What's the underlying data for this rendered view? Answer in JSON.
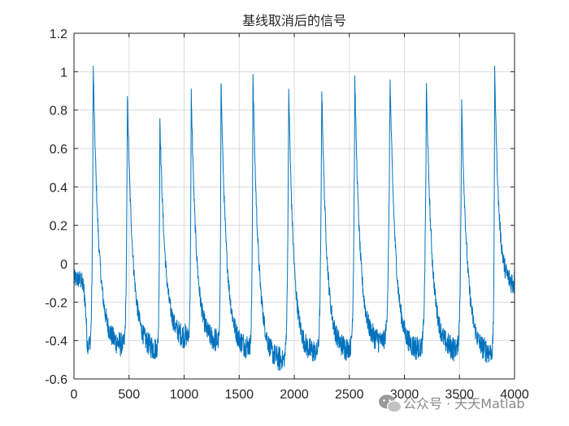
{
  "chart_data": {
    "type": "line",
    "title": "基线取消后的信号",
    "xlabel": "",
    "ylabel": "",
    "xlim": [
      0,
      4000
    ],
    "ylim": [
      -0.6,
      1.2
    ],
    "grid": true,
    "x_ticks": [
      0,
      500,
      1000,
      1500,
      2000,
      2500,
      3000,
      3500,
      4000
    ],
    "x_tick_labels": [
      "0",
      "500",
      "1000",
      "1500",
      "2000",
      "2500",
      "3000",
      "3500",
      "4000"
    ],
    "y_ticks": [
      -0.6,
      -0.4,
      -0.2,
      0,
      0.2,
      0.4,
      0.6,
      0.8,
      1,
      1.2
    ],
    "y_tick_labels": [
      "-0.6",
      "-0.4",
      "-0.2",
      "0",
      "0.2",
      "0.4",
      "0.6",
      "0.8",
      "1",
      "1.2"
    ],
    "series": [
      {
        "color": "#0072BD",
        "start": {
          "x": 0,
          "y": -0.08
        },
        "pre_dip": {
          "x": 120,
          "y": -0.42
        },
        "peaks": [
          {
            "x": 175,
            "y": 1.02
          },
          {
            "x": 485,
            "y": 0.87
          },
          {
            "x": 780,
            "y": 0.76
          },
          {
            "x": 1065,
            "y": 0.89
          },
          {
            "x": 1335,
            "y": 0.96
          },
          {
            "x": 1625,
            "y": 0.99
          },
          {
            "x": 1950,
            "y": 0.91
          },
          {
            "x": 2250,
            "y": 0.92
          },
          {
            "x": 2550,
            "y": 0.97
          },
          {
            "x": 2870,
            "y": 0.96
          },
          {
            "x": 3200,
            "y": 0.93
          },
          {
            "x": 3520,
            "y": 0.84
          },
          {
            "x": 3820,
            "y": 1.02
          }
        ],
        "troughs": [
          {
            "x": 430,
            "y": -0.42
          },
          {
            "x": 740,
            "y": -0.44
          },
          {
            "x": 1020,
            "y": -0.38
          },
          {
            "x": 1300,
            "y": -0.4
          },
          {
            "x": 1580,
            "y": -0.43
          },
          {
            "x": 1880,
            "y": -0.5
          },
          {
            "x": 2180,
            "y": -0.46
          },
          {
            "x": 2480,
            "y": -0.44
          },
          {
            "x": 2780,
            "y": -0.4
          },
          {
            "x": 3120,
            "y": -0.44
          },
          {
            "x": 3450,
            "y": -0.44
          },
          {
            "x": 3780,
            "y": -0.46
          }
        ],
        "end": {
          "x": 4000,
          "y": -0.1
        },
        "noise_amplitude": 0.05
      }
    ]
  },
  "watermark": {
    "text": "公众号 · 天天Matlab",
    "icon": "wechat-icon"
  }
}
